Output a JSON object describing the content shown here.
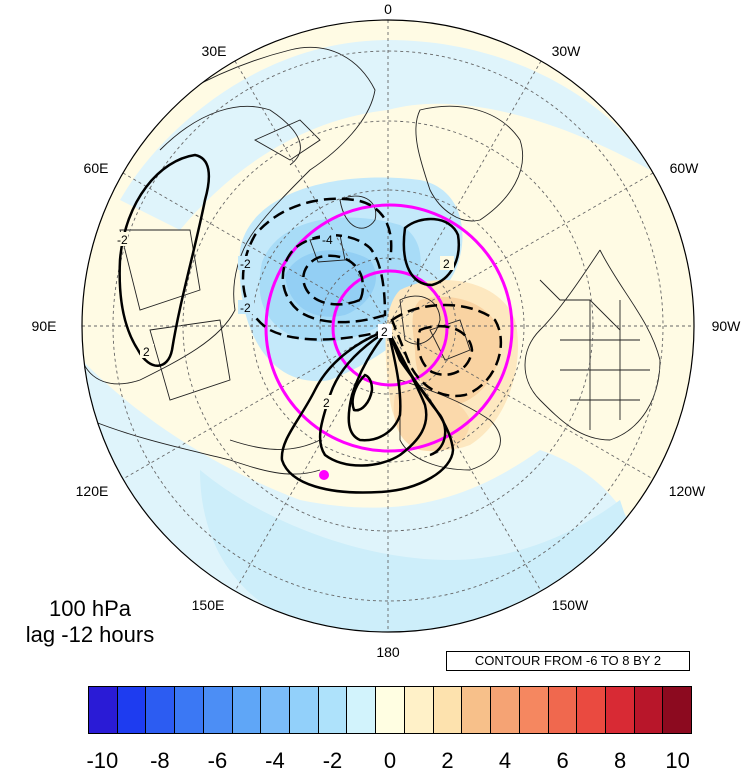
{
  "panel": {
    "level": "100 hPa",
    "lag": "lag -12 hours"
  },
  "contour_note": "CONTOUR FROM -6 TO 8 BY 2",
  "map": {
    "projection": "north-polar-stereographic",
    "longitude_labels": {
      "top": "0",
      "top_left": "30E",
      "top_right": "30W",
      "upper_left": "60E",
      "upper_right": "60W",
      "left": "90E",
      "right": "90W",
      "lower_left": "120E",
      "lower_right": "120W",
      "bottom_left": "150E",
      "bottom_right": "150W",
      "bottom": "180"
    },
    "contour_labels": [
      "-2",
      "-4",
      "-2",
      "2",
      "2",
      "2",
      "-2",
      "2"
    ],
    "colors": {
      "positive_contour": "#000000",
      "negative_contour": "#000000",
      "reference_circles": "#ff00ff",
      "marker_dot": "#ff00ff"
    }
  },
  "colorbar": {
    "colors": [
      "#2a1bd6",
      "#1e3cf0",
      "#2c5cf2",
      "#3b78f4",
      "#4c8ef5",
      "#5fa6f7",
      "#7bbcf9",
      "#92d0fa",
      "#aee2fb",
      "#d2f3fc",
      "#fffee2",
      "#fff1c8",
      "#fde2ae",
      "#f7c08a",
      "#f5a374",
      "#f58760",
      "#f0684e",
      "#ea4a40",
      "#d82a34",
      "#b8162a",
      "#8c0a1f"
    ],
    "labels": [
      "-10",
      "-8",
      "-6",
      "-4",
      "-2",
      "0",
      "2",
      "4",
      "6",
      "8",
      "10"
    ]
  }
}
